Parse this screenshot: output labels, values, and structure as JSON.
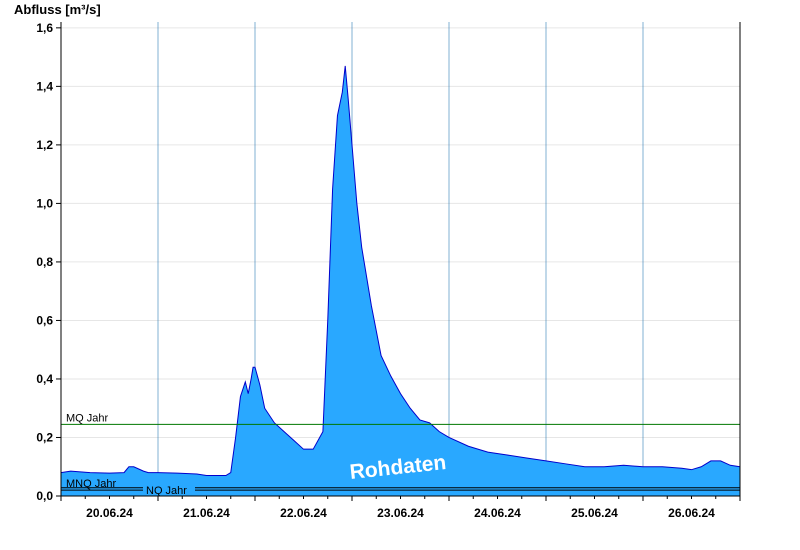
{
  "chart_data": {
    "type": "area",
    "ylabel": "Abfluss [m³/s]",
    "ylim": [
      0,
      1.62
    ],
    "yticks": [
      "0,0",
      "0,2",
      "0,4",
      "0,6",
      "0,8",
      "1,0",
      "1,2",
      "1,4",
      "1,6"
    ],
    "ytick_values": [
      0,
      0.2,
      0.4,
      0.6,
      0.8,
      1.0,
      1.2,
      1.4,
      1.6
    ],
    "xlim_days": [
      0,
      7
    ],
    "x_day_labels": [
      "20.06.24",
      "21.06.24",
      "22.06.24",
      "23.06.24",
      "24.06.24",
      "25.06.24",
      "26.06.24"
    ],
    "grid": true,
    "fill_color": "#29a8ff",
    "line_color": "#0000cc",
    "watermark": "Rohdaten",
    "reference_lines": [
      {
        "name": "MQ Jahr",
        "value": 0.245,
        "color": "#007700"
      },
      {
        "name": "MNQ Jahr",
        "value": 0.028,
        "color": "#000000"
      },
      {
        "name": "NQ Jahr",
        "value": 0.02,
        "color": "#000000"
      }
    ],
    "series": [
      {
        "x_day": [
          0,
          0.1,
          0.3,
          0.5,
          0.65,
          0.7,
          0.75,
          0.85,
          0.9,
          1.0,
          1.2,
          1.4,
          1.5,
          1.7,
          1.75,
          1.8,
          1.85,
          1.9,
          1.93,
          1.96,
          1.98,
          2.0,
          2.05,
          2.1,
          2.2,
          2.3,
          2.4,
          2.5,
          2.6,
          2.7,
          2.75,
          2.8,
          2.85,
          2.9,
          2.93,
          2.96,
          3.0,
          3.05,
          3.1,
          3.2,
          3.3,
          3.4,
          3.5,
          3.6,
          3.7,
          3.8,
          3.9,
          4.0,
          4.2,
          4.4,
          4.6,
          4.8,
          5.0,
          5.2,
          5.4,
          5.6,
          5.8,
          6.0,
          6.2,
          6.4,
          6.5,
          6.6,
          6.7,
          6.8,
          6.9,
          7.0
        ],
        "values": [
          0.08,
          0.085,
          0.08,
          0.078,
          0.08,
          0.1,
          0.1,
          0.085,
          0.08,
          0.08,
          0.078,
          0.075,
          0.07,
          0.07,
          0.08,
          0.2,
          0.34,
          0.39,
          0.35,
          0.4,
          0.44,
          0.44,
          0.38,
          0.3,
          0.25,
          0.22,
          0.19,
          0.16,
          0.16,
          0.22,
          0.6,
          1.05,
          1.3,
          1.38,
          1.47,
          1.36,
          1.2,
          1.0,
          0.85,
          0.65,
          0.48,
          0.41,
          0.35,
          0.3,
          0.26,
          0.25,
          0.22,
          0.2,
          0.17,
          0.15,
          0.14,
          0.13,
          0.12,
          0.11,
          0.1,
          0.1,
          0.105,
          0.1,
          0.1,
          0.095,
          0.09,
          0.1,
          0.12,
          0.12,
          0.105,
          0.1
        ]
      }
    ]
  }
}
